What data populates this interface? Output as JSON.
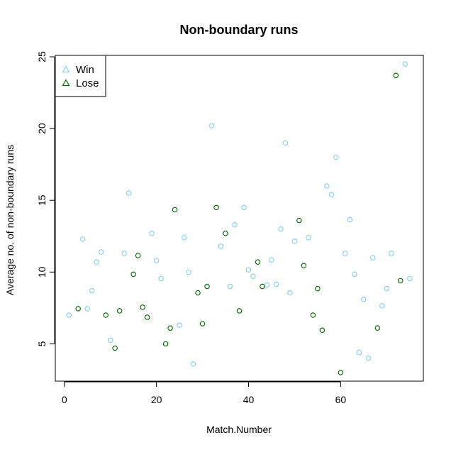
{
  "chart_data": {
    "type": "scatter",
    "title": "Non-boundary runs",
    "xlabel": "Match.Number",
    "ylabel": "Average no. of non-boundary runs",
    "xlim": [
      -1.96,
      77.96
    ],
    "ylim": [
      2.4,
      25.1
    ],
    "x_ticks": [
      0,
      20,
      40,
      60
    ],
    "y_ticks": [
      5,
      10,
      15,
      20,
      25
    ],
    "legend_position": "top-left",
    "series": [
      {
        "name": "Win",
        "color": "#87CEEB",
        "marker": "circle-open",
        "legend_marker": "triangle-open",
        "points": [
          [
            1,
            7.0
          ],
          [
            4,
            12.3
          ],
          [
            5,
            7.45
          ],
          [
            6,
            8.7
          ],
          [
            7,
            10.7
          ],
          [
            8,
            11.4
          ],
          [
            10,
            5.25
          ],
          [
            13,
            11.3
          ],
          [
            14,
            15.5
          ],
          [
            19,
            12.7
          ],
          [
            20,
            10.8
          ],
          [
            21,
            9.55
          ],
          [
            25,
            6.3
          ],
          [
            26,
            12.4
          ],
          [
            27,
            10.0
          ],
          [
            28,
            3.6
          ],
          [
            32,
            20.2
          ],
          [
            34,
            11.8
          ],
          [
            36,
            9.0
          ],
          [
            37,
            13.3
          ],
          [
            39,
            14.5
          ],
          [
            40,
            10.15
          ],
          [
            41,
            9.7
          ],
          [
            44,
            9.1
          ],
          [
            45,
            10.85
          ],
          [
            46,
            9.15
          ],
          [
            47,
            13.0
          ],
          [
            48,
            19.0
          ],
          [
            49,
            8.55
          ],
          [
            50,
            12.15
          ],
          [
            53,
            12.4
          ],
          [
            57,
            16.0
          ],
          [
            58,
            15.4
          ],
          [
            59,
            18.0
          ],
          [
            61,
            11.3
          ],
          [
            62,
            13.65
          ],
          [
            63,
            9.85
          ],
          [
            64,
            4.4
          ],
          [
            65,
            8.1
          ],
          [
            66,
            4.0
          ],
          [
            67,
            11.0
          ],
          [
            69,
            7.65
          ],
          [
            70,
            8.85
          ],
          [
            71,
            11.3
          ],
          [
            74,
            24.5
          ],
          [
            75,
            9.55
          ]
        ]
      },
      {
        "name": "Lose",
        "color": "#006400",
        "marker": "circle-open",
        "legend_marker": "triangle-open",
        "points": [
          [
            3,
            7.45
          ],
          [
            9,
            7.0
          ],
          [
            11,
            4.7
          ],
          [
            12,
            7.3
          ],
          [
            15,
            9.85
          ],
          [
            16,
            11.15
          ],
          [
            17,
            7.55
          ],
          [
            18,
            6.85
          ],
          [
            22,
            5.0
          ],
          [
            23,
            6.1
          ],
          [
            24,
            14.35
          ],
          [
            29,
            8.55
          ],
          [
            30,
            6.4
          ],
          [
            31,
            9.0
          ],
          [
            33,
            14.5
          ],
          [
            35,
            12.7
          ],
          [
            38,
            7.3
          ],
          [
            42,
            10.7
          ],
          [
            43,
            9.0
          ],
          [
            51,
            13.6
          ],
          [
            52,
            10.45
          ],
          [
            54,
            7.0
          ],
          [
            55,
            8.85
          ],
          [
            56,
            5.95
          ],
          [
            60,
            3.0
          ],
          [
            68,
            6.1
          ],
          [
            72,
            23.7
          ],
          [
            73,
            9.4
          ]
        ]
      }
    ]
  }
}
